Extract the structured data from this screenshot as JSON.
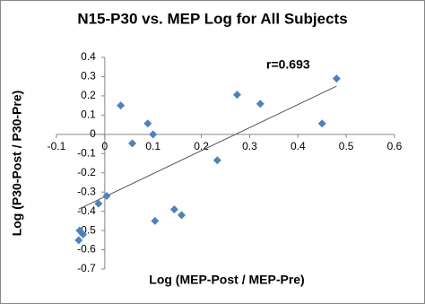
{
  "chart_data": {
    "type": "scatter",
    "title": "N15-P30 vs. MEP Log for All Subjects",
    "x_label": "Log (MEP-Post / MEP-Pre)",
    "y_label": "Log (P30-Post / P30-Pre)",
    "annotation": "r=0.693",
    "color": "#4f81bd",
    "trendline": true,
    "x": [
      0.033,
      0.089,
      0.1,
      0.057,
      0.274,
      0.322,
      0.48,
      0.45,
      0.233,
      0.004,
      -0.013,
      0.104,
      0.144,
      0.159,
      -0.052,
      -0.054,
      -0.045
    ],
    "values": [
      0.15,
      0.056,
      0.0,
      -0.047,
      0.206,
      0.159,
      0.29,
      0.056,
      -0.135,
      -0.32,
      -0.36,
      -0.45,
      -0.39,
      -0.42,
      -0.5,
      -0.55,
      -0.52
    ],
    "xlim": [
      -0.1,
      0.6
    ],
    "xticks": [
      -0.1,
      0,
      0.1,
      0.2,
      0.3,
      0.4,
      0.5,
      0.6
    ],
    "ylim": [
      -0.7,
      0.4
    ],
    "yticks": [
      -0.7,
      -0.6,
      -0.5,
      -0.4,
      -0.3,
      -0.2,
      -0.1,
      0,
      0.1,
      0.2,
      0.3,
      0.4
    ]
  }
}
